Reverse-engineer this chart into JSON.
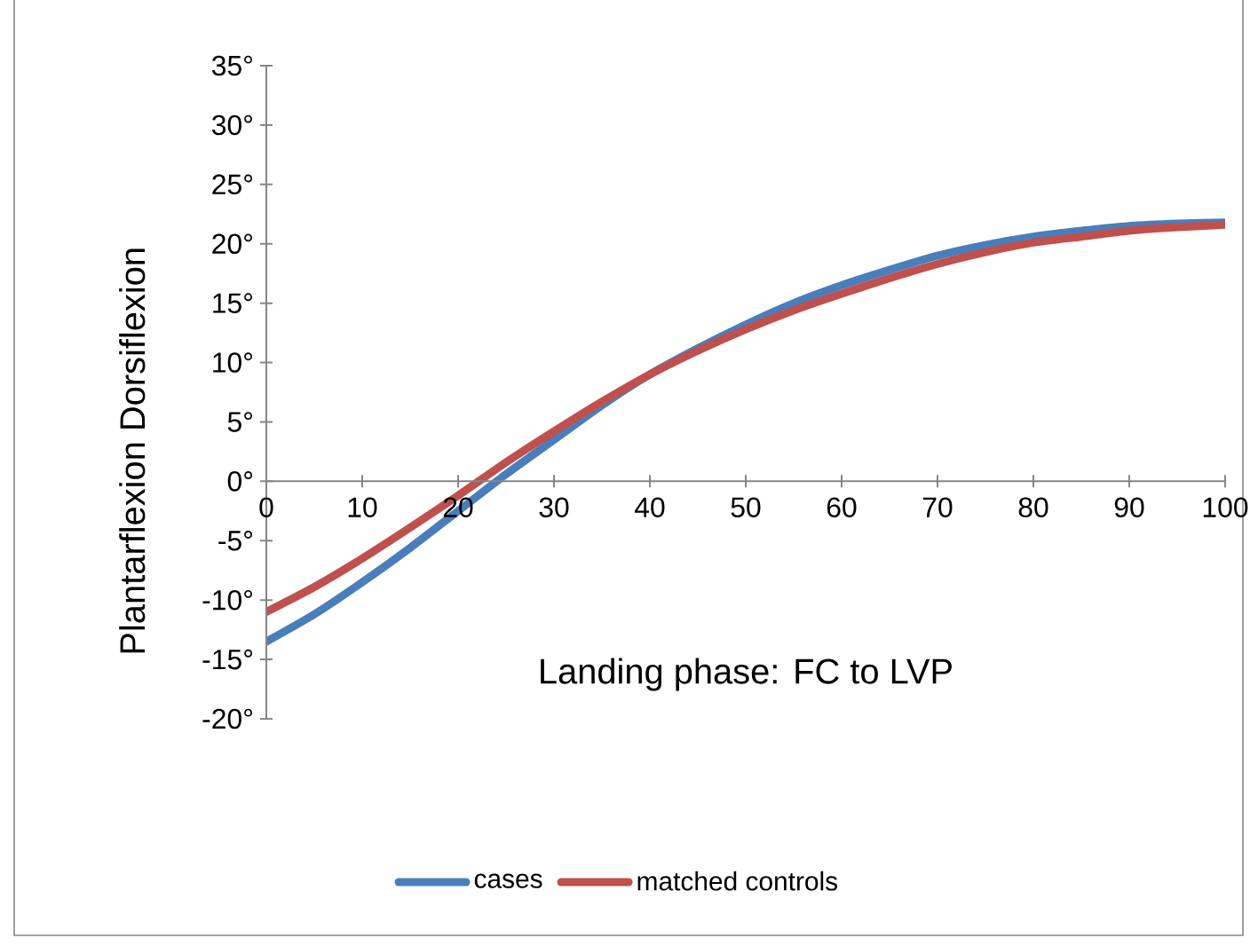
{
  "chart_data": {
    "type": "line",
    "xlabel": "Landing phase: FC to LVP",
    "ylabel": "Plantarflexion  Dorsiflexion",
    "x": [
      0,
      5,
      10,
      15,
      20,
      25,
      30,
      35,
      40,
      45,
      50,
      55,
      60,
      65,
      70,
      75,
      80,
      85,
      90,
      95,
      100
    ],
    "series": [
      {
        "name": "cases",
        "color": "#4a7ebb",
        "values": [
          -13.5,
          -11.2,
          -8.5,
          -5.6,
          -2.5,
          0.6,
          3.5,
          6.4,
          9,
          11.2,
          13.2,
          15,
          16.5,
          17.8,
          19,
          19.9,
          20.6,
          21.1,
          21.5,
          21.7,
          21.8
        ]
      },
      {
        "name": "matched controls",
        "color": "#c0504d",
        "values": [
          -11,
          -8.9,
          -6.5,
          -3.9,
          -1.2,
          1.6,
          4.2,
          6.7,
          9,
          11,
          12.8,
          14.4,
          15.8,
          17.1,
          18.3,
          19.3,
          20.1,
          20.6,
          21.1,
          21.4,
          21.6
        ]
      }
    ],
    "xlim": [
      0,
      100
    ],
    "xticks": [
      0,
      10,
      20,
      30,
      40,
      50,
      60,
      70,
      80,
      90,
      100
    ],
    "ylim": [
      -20,
      35
    ],
    "yticks": [
      {
        "value": -20,
        "label": "-20°"
      },
      {
        "value": -15,
        "label": "-15°"
      },
      {
        "value": -10,
        "label": "-10°"
      },
      {
        "value": -5,
        "label": "-5°"
      },
      {
        "value": 0,
        "label": "0°"
      },
      {
        "value": 5,
        "label": "5°"
      },
      {
        "value": 10,
        "label": "10°"
      },
      {
        "value": 15,
        "label": "15°"
      },
      {
        "value": 20,
        "label": "20°"
      },
      {
        "value": 25,
        "label": "25°"
      },
      {
        "value": 30,
        "label": "30°"
      },
      {
        "value": 35,
        "label": "35°"
      }
    ],
    "grid": false,
    "legend": "bottom",
    "marker": "none",
    "line_style": "solid"
  }
}
